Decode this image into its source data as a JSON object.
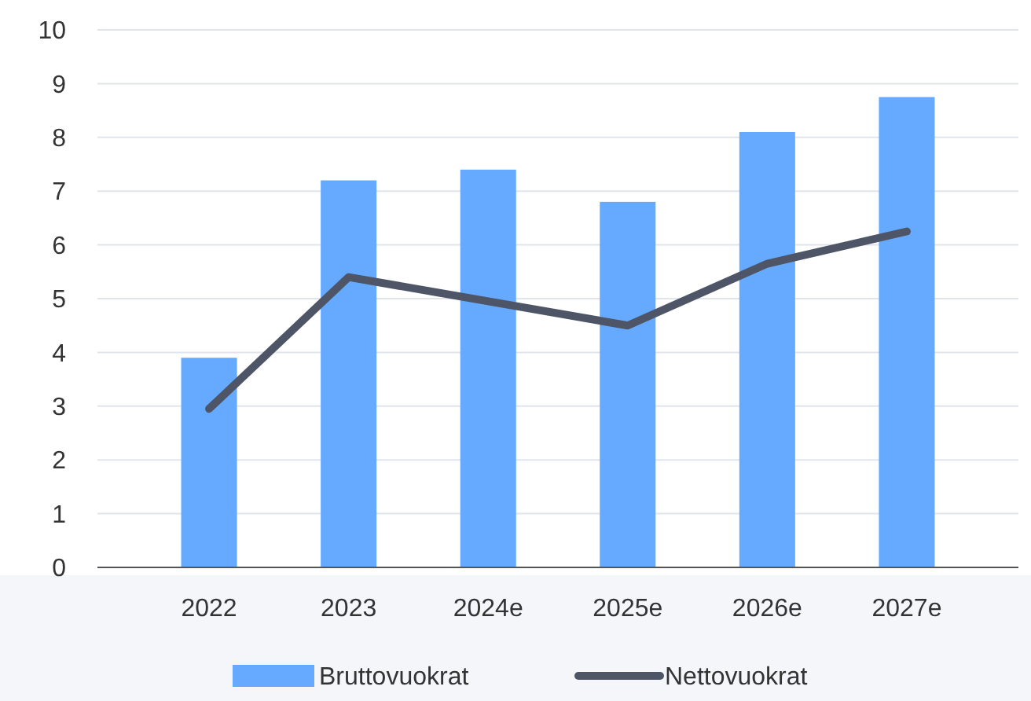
{
  "chart_data": {
    "type": "bar",
    "categories": [
      "2022",
      "2023",
      "2024e",
      "2025e",
      "2026e",
      "2027e"
    ],
    "series": [
      {
        "name": "Bruttovuokrat",
        "color": "#66aaff",
        "values": [
          3.9,
          7.2,
          7.4,
          6.8,
          8.1,
          8.75
        ]
      },
      {
        "name": "Nettovuokrat",
        "type": "line",
        "color": "#4d5566",
        "values": [
          2.95,
          5.4,
          4.95,
          4.5,
          5.65,
          6.25
        ]
      }
    ],
    "ylim": [
      0,
      10
    ],
    "yticks": [
      0,
      1,
      2,
      3,
      4,
      5,
      6,
      7,
      8,
      9,
      10
    ],
    "grid": "y",
    "legend": "bottom",
    "marker": "none",
    "line_style": "solid"
  }
}
